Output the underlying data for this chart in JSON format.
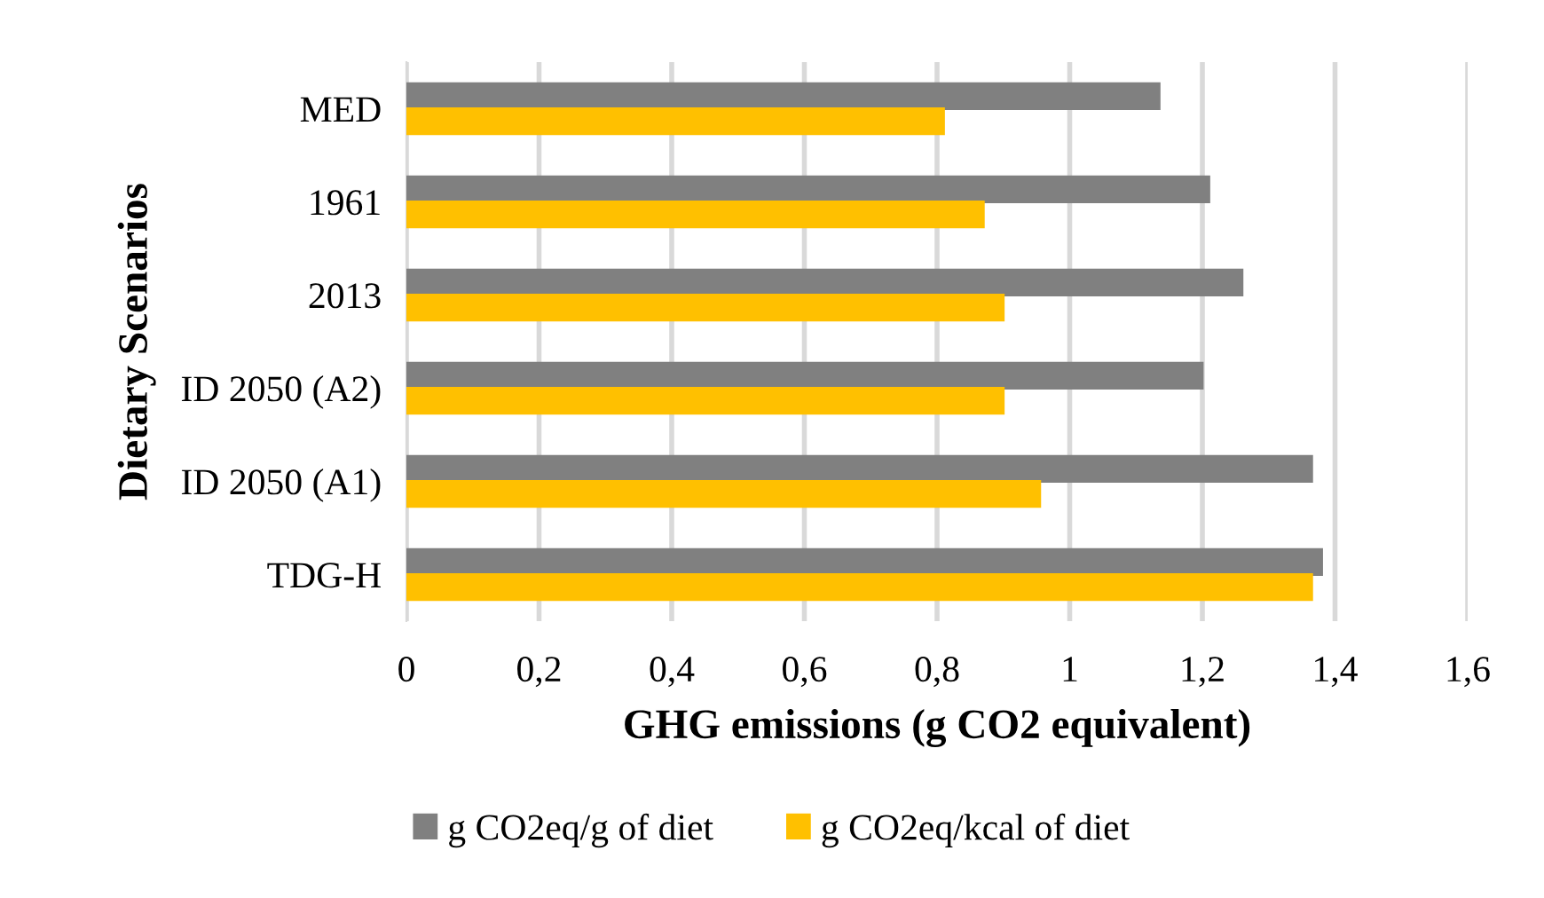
{
  "chart_data": {
    "type": "bar",
    "orientation": "horizontal",
    "categories": [
      "MED",
      "1961",
      "2013",
      "ID 2050 (A2)",
      "ID 2050 (A1)",
      "TDG-H"
    ],
    "series": [
      {
        "name": "g CO2eq/g of diet",
        "color": "#808080",
        "values": [
          1.135,
          1.21,
          1.26,
          1.2,
          1.365,
          1.38
        ]
      },
      {
        "name": "g CO2eq/kcal of diet",
        "color": "#ffc000",
        "values": [
          0.81,
          0.87,
          0.9,
          0.9,
          0.955,
          1.365
        ]
      }
    ],
    "xlabel": "GHG emissions (g CO2 equivalent)",
    "ylabel": "Dietary Scenarios",
    "xlim": [
      0,
      1.6
    ],
    "xticks": [
      0,
      {
        "value": 0.2,
        "label": "0,2"
      },
      {
        "value": 0.4,
        "label": "0,4"
      },
      {
        "value": 0.6,
        "label": "0,6"
      },
      {
        "value": 0.8,
        "label": "0,8"
      },
      1,
      {
        "value": 1.2,
        "label": "1,2"
      },
      {
        "value": 1.4,
        "label": "1,4"
      },
      {
        "value": 1.6,
        "label": "1,6"
      }
    ],
    "grid": "x",
    "legend": "bottom"
  }
}
